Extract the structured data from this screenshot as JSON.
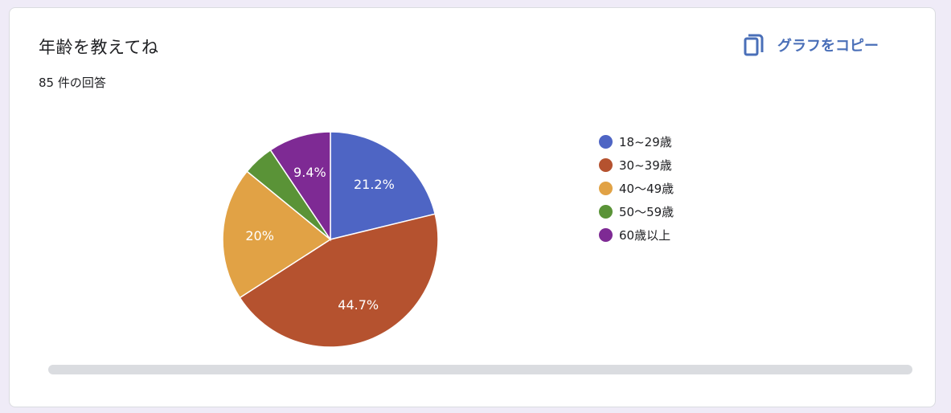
{
  "card": {
    "title": "年齢を教えてね",
    "response_count": "85 件の回答",
    "copy_label": "グラフをコピー",
    "copy_icon": "copy-icon"
  },
  "chart_data": {
    "type": "pie",
    "start_angle_deg": 90,
    "direction": "clockwise",
    "legend_position": "right",
    "slices": [
      {
        "label": "18~29歳",
        "value": 21.2,
        "display": "21.2%",
        "color": "#4e65c4"
      },
      {
        "label": "30~39歳",
        "value": 44.7,
        "display": "44.7%",
        "color": "#b5522f"
      },
      {
        "label": "40〜49歳",
        "value": 20.0,
        "display": "20%",
        "color": "#e1a245"
      },
      {
        "label": "50〜59歳",
        "value": 4.7,
        "display": "",
        "color": "#5a9337"
      },
      {
        "label": "60歳以上",
        "value": 9.4,
        "display": "9.4%",
        "color": "#7e2a94"
      }
    ]
  }
}
